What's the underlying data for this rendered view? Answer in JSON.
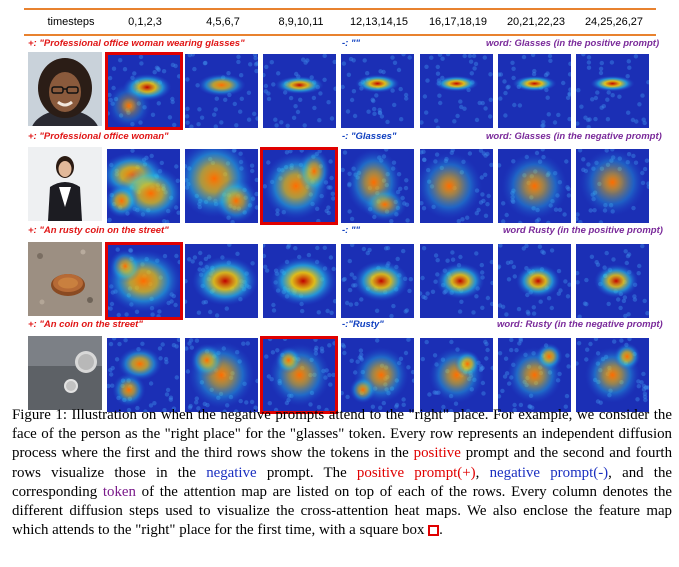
{
  "header": {
    "timesteps_label": "timesteps",
    "columns": [
      "0,1,2,3",
      "4,5,6,7",
      "8,9,10,11",
      "12,13,14,15",
      "16,17,18,19",
      "20,21,22,23",
      "24,25,26,27"
    ]
  },
  "rows": [
    {
      "pos_prefix": "+:",
      "pos_prompt": "\"Professional office woman wearing glasses\"",
      "neg_prefix": "-:",
      "neg_prompt": "\"\"",
      "word_label": "word: Glasses (in the positive prompt)"
    },
    {
      "pos_prefix": "+:",
      "pos_prompt": "\"Professional office woman\"",
      "neg_prefix": "-:",
      "neg_prompt": "\"Glasses\"",
      "word_label": "word: Glasses (in the negative prompt)"
    },
    {
      "pos_prefix": "+:",
      "pos_prompt": "\"An rusty coin on the street\"",
      "neg_prefix": "-:",
      "neg_prompt": "\"\"",
      "word_label": "word Rusty (in the positive prompt)"
    },
    {
      "pos_prefix": "+:",
      "pos_prompt": "\"An coin on the street\"",
      "neg_prefix": "-:",
      "neg_prompt": "\"Rusty\"",
      "word_label": "word: Rusty (in the negative prompt)"
    }
  ],
  "caption": {
    "p1": "Figure 1: Illustration on when the negative prompts attend to the \"right\" place. For example, we consider the face of the person as the \"right place\" for the \"glasses\" token. Every row represents an independent diffusion process where the first and the third rows show the tokens in the ",
    "positive": "positive",
    "p2": " prompt and the second and fourth rows visualize those in the ",
    "negative": "negative",
    "p3": " prompt. The ",
    "positive_prompt": "positive prompt(+)",
    "p4": ", ",
    "negative_prompt": "negative prompt(-)",
    "p5": ", and the corresponding ",
    "token": "token",
    "p6": " of the attention map are listed on top of each of the rows. Every column denotes the different diffusion steps used to visualize the cross-attention heat maps. We also enclose the feature map which attends to the \"right\" place for the first time, with a square box ",
    "p7": "."
  },
  "colors": {
    "accent_line": "#e8822f",
    "box": "#e00000",
    "positive": "#e00000",
    "negative": "#1a2fc0",
    "token": "#7a1a8a"
  }
}
